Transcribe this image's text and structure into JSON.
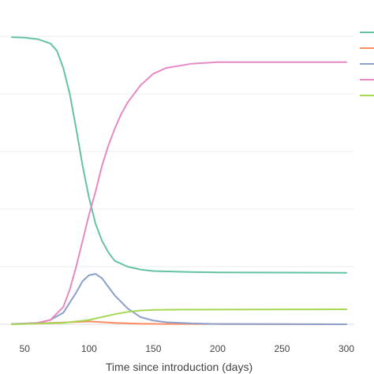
{
  "chart_data": {
    "type": "line",
    "title": "",
    "xlabel": "Time since introduction (days)",
    "ylabel": "",
    "xlim": [
      40,
      300
    ],
    "ylim": [
      0,
      1.0
    ],
    "x_ticks": [
      50,
      100,
      150,
      200,
      250,
      300
    ],
    "y_gridlines": [
      0,
      0.2,
      0.4,
      0.6,
      0.8,
      1.0
    ],
    "grid": true,
    "legend_placement": "top-right",
    "series": [
      {
        "color": "#66c2a5",
        "points": [
          [
            40,
            0.997
          ],
          [
            50,
            0.995
          ],
          [
            60,
            0.99
          ],
          [
            70,
            0.975
          ],
          [
            75,
            0.95
          ],
          [
            80,
            0.89
          ],
          [
            85,
            0.8
          ],
          [
            90,
            0.68
          ],
          [
            95,
            0.55
          ],
          [
            100,
            0.44
          ],
          [
            105,
            0.35
          ],
          [
            110,
            0.29
          ],
          [
            115,
            0.25
          ],
          [
            120,
            0.22
          ],
          [
            130,
            0.2
          ],
          [
            140,
            0.19
          ],
          [
            150,
            0.185
          ],
          [
            175,
            0.182
          ],
          [
            200,
            0.18
          ],
          [
            300,
            0.179
          ]
        ]
      },
      {
        "color": "#fc8d62",
        "points": [
          [
            40,
            0.001
          ],
          [
            80,
            0.006
          ],
          [
            100,
            0.01
          ],
          [
            120,
            0.005
          ],
          [
            140,
            0.002
          ],
          [
            160,
            0.001
          ],
          [
            300,
            0
          ]
        ]
      },
      {
        "color": "#8da0cb",
        "points": [
          [
            40,
            0.001
          ],
          [
            60,
            0.005
          ],
          [
            70,
            0.015
          ],
          [
            80,
            0.04
          ],
          [
            90,
            0.11
          ],
          [
            95,
            0.15
          ],
          [
            100,
            0.17
          ],
          [
            105,
            0.175
          ],
          [
            110,
            0.16
          ],
          [
            120,
            0.1
          ],
          [
            130,
            0.055
          ],
          [
            140,
            0.025
          ],
          [
            150,
            0.013
          ],
          [
            160,
            0.007
          ],
          [
            180,
            0.003
          ],
          [
            200,
            0.001
          ],
          [
            300,
            0
          ]
        ]
      },
      {
        "color": "#e78ac3",
        "points": [
          [
            40,
            0
          ],
          [
            60,
            0.005
          ],
          [
            70,
            0.015
          ],
          [
            80,
            0.06
          ],
          [
            85,
            0.12
          ],
          [
            90,
            0.2
          ],
          [
            95,
            0.29
          ],
          [
            100,
            0.38
          ],
          [
            105,
            0.46
          ],
          [
            110,
            0.55
          ],
          [
            115,
            0.62
          ],
          [
            120,
            0.68
          ],
          [
            125,
            0.73
          ],
          [
            130,
            0.77
          ],
          [
            140,
            0.83
          ],
          [
            150,
            0.87
          ],
          [
            160,
            0.89
          ],
          [
            180,
            0.905
          ],
          [
            200,
            0.91
          ],
          [
            300,
            0.91
          ]
        ]
      },
      {
        "color": "#a6d854",
        "points": [
          [
            40,
            0
          ],
          [
            80,
            0.005
          ],
          [
            100,
            0.015
          ],
          [
            110,
            0.025
          ],
          [
            120,
            0.035
          ],
          [
            130,
            0.043
          ],
          [
            140,
            0.048
          ],
          [
            150,
            0.05
          ],
          [
            175,
            0.051
          ],
          [
            300,
            0.052
          ]
        ]
      }
    ]
  }
}
